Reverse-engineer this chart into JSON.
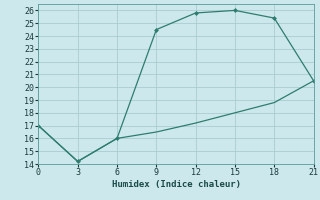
{
  "xlabel": "Humidex (Indice chaleur)",
  "upper_x": [
    0,
    3,
    6,
    9,
    12,
    15,
    18,
    21
  ],
  "upper_y": [
    17,
    14.2,
    16,
    24.5,
    25.8,
    26,
    25.4,
    20.5
  ],
  "lower_x": [
    0,
    3,
    6,
    9,
    12,
    15,
    18,
    21
  ],
  "lower_y": [
    17,
    14.2,
    16,
    16.5,
    17.2,
    18.0,
    18.8,
    20.5
  ],
  "marker_x": [
    0,
    3,
    6,
    9,
    12,
    15,
    18,
    21
  ],
  "marker_y": [
    17,
    14.2,
    16,
    24.5,
    25.8,
    26,
    25.4,
    20.5
  ],
  "line_color": "#2e7d6e",
  "bg_color": "#cce8ec",
  "grid_color": "#aacdd2",
  "xlim": [
    0,
    21
  ],
  "ylim": [
    14,
    26.5
  ],
  "xticks": [
    0,
    3,
    6,
    9,
    12,
    15,
    18,
    21
  ],
  "yticks": [
    14,
    15,
    16,
    17,
    18,
    19,
    20,
    21,
    22,
    23,
    24,
    25,
    26
  ]
}
